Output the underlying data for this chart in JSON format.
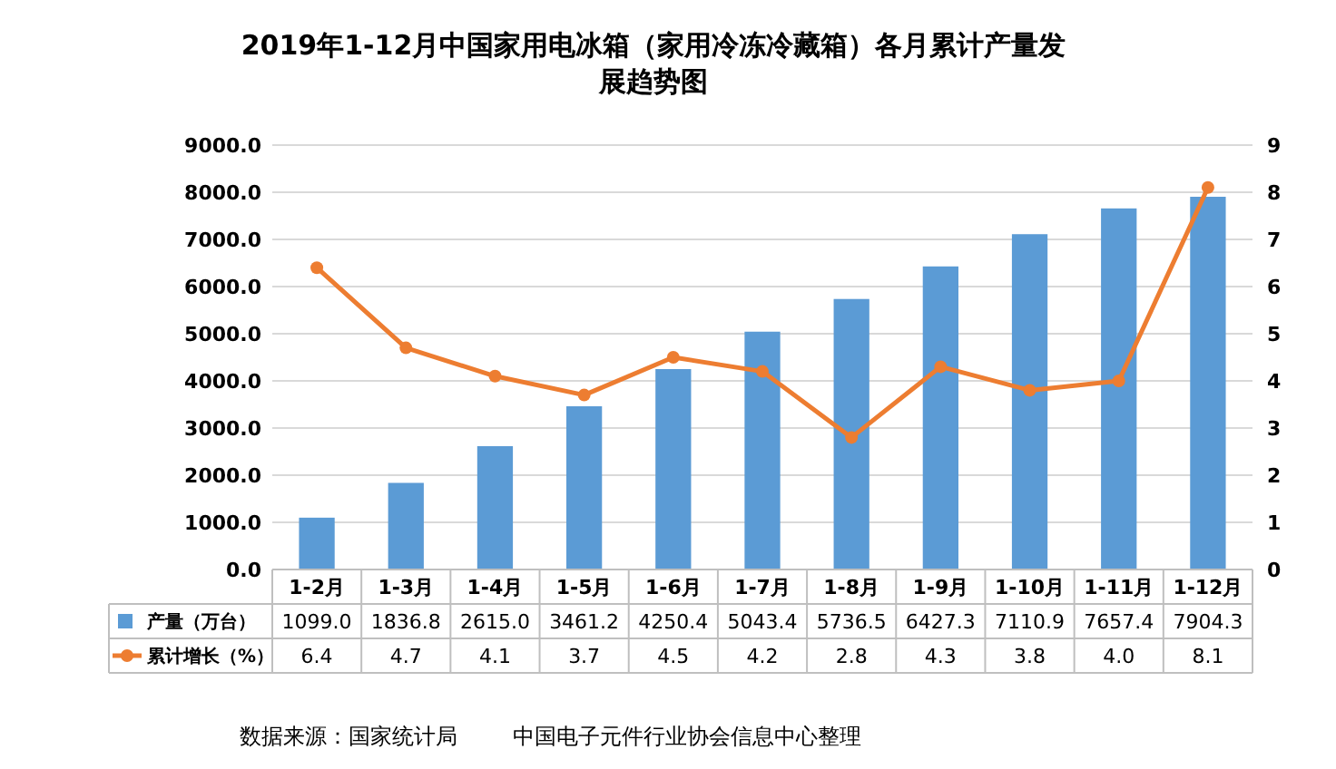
{
  "chart_data": {
    "type": "bar",
    "title": "2019年1-12月中国家用电冰箱（家用冷冻冷藏箱）各月累计产量发展趋势图",
    "categories": [
      "1-2月",
      "1-3月",
      "1-4月",
      "1-5月",
      "1-6月",
      "1-7月",
      "1-8月",
      "1-9月",
      "1-10月",
      "1-11月",
      "1-12月"
    ],
    "series": [
      {
        "name": "产量（万台）",
        "color": "#5b9bd5",
        "values": [
          1099.0,
          1836.8,
          2615.0,
          3461.2,
          4250.4,
          5043.4,
          5736.5,
          6427.3,
          7110.9,
          7657.4,
          7904.3
        ],
        "value_labels": [
          "1099.0",
          "1836.8",
          "2615.0",
          "3461.2",
          "4250.4",
          "5043.4",
          "5736.5",
          "6427.3",
          "7110.9",
          "7657.4",
          "7904.3"
        ]
      },
      {
        "name": "累计增长（%）",
        "type": "line",
        "axis": "y2",
        "color": "#ed7d31",
        "marker": "circle",
        "values": [
          6.4,
          4.7,
          4.1,
          3.7,
          4.5,
          4.2,
          2.8,
          4.3,
          3.8,
          4.0,
          8.1
        ],
        "value_labels": [
          "6.4",
          "4.7",
          "4.1",
          "3.7",
          "4.5",
          "4.2",
          "2.8",
          "4.3",
          "3.8",
          "4.0",
          "8.1"
        ]
      }
    ],
    "ylim": [
      0,
      9000
    ],
    "yticks": [
      {
        "value": 0,
        "label": "0.0"
      },
      {
        "value": 1000,
        "label": "1000.0"
      },
      {
        "value": 2000,
        "label": "2000.0"
      },
      {
        "value": 3000,
        "label": "3000.0"
      },
      {
        "value": 4000,
        "label": "4000.0"
      },
      {
        "value": 5000,
        "label": "5000.0"
      },
      {
        "value": 6000,
        "label": "6000.0"
      },
      {
        "value": 7000,
        "label": "7000.0"
      },
      {
        "value": 8000,
        "label": "8000.0"
      },
      {
        "value": 9000,
        "label": "9000.0"
      }
    ],
    "y2lim": [
      0,
      9
    ],
    "y2ticks": [
      0,
      1,
      2,
      3,
      4,
      5,
      6,
      7,
      8,
      9
    ],
    "grid": "y",
    "legend": "bottom",
    "annotations": [
      "数据来源：国家统计局        中国电子元件行业协会信息中心整理"
    ]
  }
}
